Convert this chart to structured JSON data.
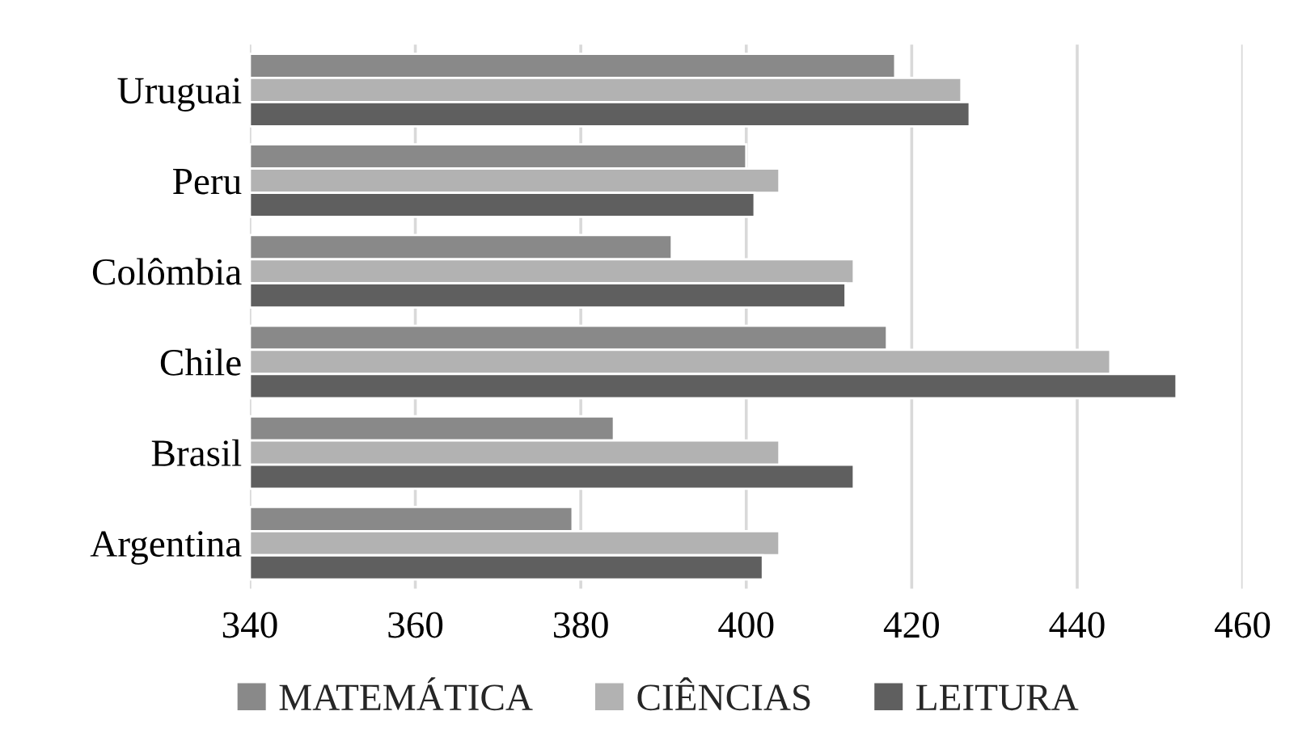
{
  "chart_data": {
    "type": "bar",
    "orientation": "horizontal",
    "categories": [
      "Uruguai",
      "Peru",
      "Colômbia",
      "Chile",
      "Brasil",
      "Argentina"
    ],
    "series": [
      {
        "name": "MATEMÁTICA",
        "color": "#898989",
        "values": [
          418,
          400,
          391,
          417,
          384,
          379
        ]
      },
      {
        "name": "CIÊNCIAS",
        "color": "#b2b2b2",
        "values": [
          426,
          404,
          413,
          444,
          404,
          404
        ]
      },
      {
        "name": "LEITURA",
        "color": "#5f5f5f",
        "values": [
          427,
          401,
          412,
          452,
          413,
          402
        ]
      }
    ],
    "xlim": [
      340,
      460
    ],
    "xticks": [
      340,
      360,
      380,
      400,
      420,
      440,
      460
    ],
    "grid": "x",
    "legend": "bottom"
  }
}
